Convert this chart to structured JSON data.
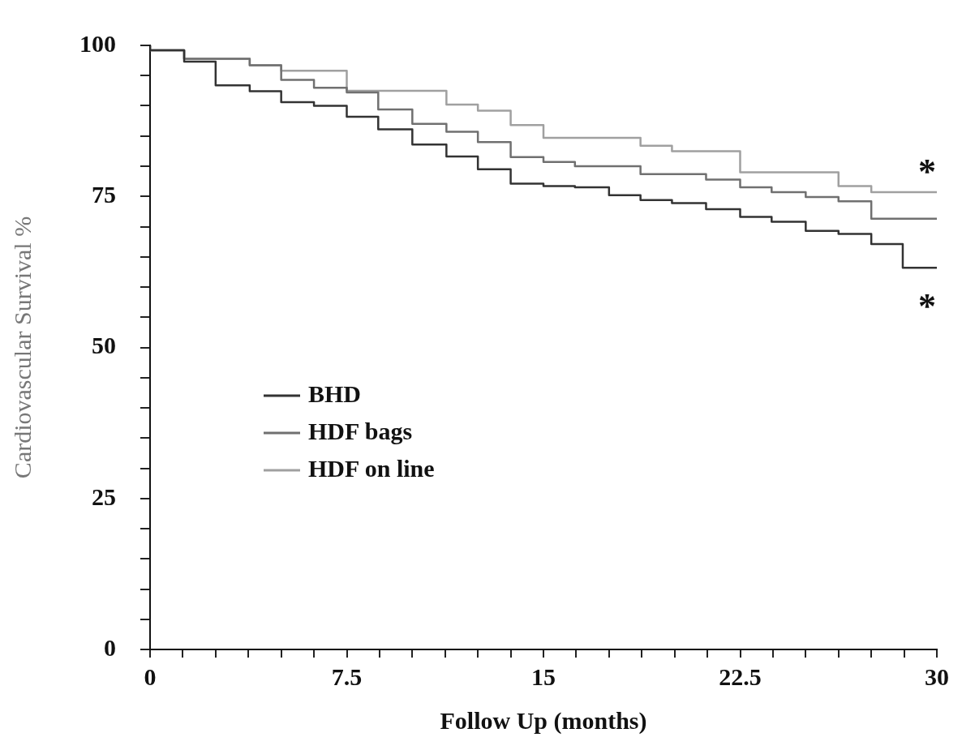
{
  "chart_data": {
    "type": "step",
    "xlabel": "Follow Up (months)",
    "ylabel": "Cardiovascular Survival %",
    "xlim": [
      0,
      30
    ],
    "ylim": [
      0,
      100
    ],
    "xticks": [
      0,
      {
        "value": 1.25,
        "label": null
      },
      {
        "value": 2.5,
        "label": null
      },
      {
        "value": 3.75,
        "label": null
      },
      {
        "value": 5,
        "label": null
      },
      {
        "value": 6.25,
        "label": null
      },
      7.5,
      {
        "value": 8.75,
        "label": null
      },
      {
        "value": 10,
        "label": null
      },
      {
        "value": 11.25,
        "label": null
      },
      {
        "value": 12.5,
        "label": null
      },
      {
        "value": 13.75,
        "label": null
      },
      15,
      {
        "value": 16.25,
        "label": null
      },
      {
        "value": 17.5,
        "label": null
      },
      {
        "value": 18.75,
        "label": null
      },
      {
        "value": 20,
        "label": null
      },
      {
        "value": 21.25,
        "label": null
      },
      22.5,
      {
        "value": 23.75,
        "label": null
      },
      {
        "value": 25,
        "label": null
      },
      {
        "value": 26.25,
        "label": null
      },
      {
        "value": 27.5,
        "label": null
      },
      {
        "value": 28.75,
        "label": null
      },
      30
    ],
    "yticks": [
      0,
      {
        "value": 5,
        "label": null
      },
      {
        "value": 10,
        "label": null
      },
      {
        "value": 15,
        "label": null
      },
      {
        "value": 20,
        "label": null
      },
      25,
      {
        "value": 30,
        "label": null
      },
      {
        "value": 35,
        "label": null
      },
      {
        "value": 40,
        "label": null
      },
      {
        "value": 45,
        "label": null
      },
      50,
      {
        "value": 55,
        "label": null
      },
      {
        "value": 60,
        "label": null
      },
      {
        "value": 65,
        "label": null
      },
      {
        "value": 70,
        "label": null
      },
      75,
      {
        "value": 80,
        "label": null
      },
      {
        "value": 85,
        "label": null
      },
      {
        "value": 90,
        "label": null
      },
      {
        "value": 95,
        "label": null
      },
      100
    ],
    "grid": false,
    "legend": "left",
    "series": [
      {
        "name": "BHD",
        "color": "#333333",
        "x": [
          0,
          1.3,
          2.5,
          3.8,
          5,
          6.25,
          7.5,
          8.7,
          10,
          11.3,
          12.5,
          13.75,
          15,
          16.2,
          17.5,
          18.7,
          19.9,
          21.2,
          22.5,
          23.7,
          25,
          26.25,
          27.5,
          28.7,
          30
        ],
        "values": [
          100,
          99.2,
          97.3,
          93.4,
          92.4,
          90.6,
          90,
          88.2,
          86.1,
          83.6,
          81.6,
          79.5,
          77.1,
          76.7,
          76.5,
          75.2,
          74.4,
          73.9,
          72.9,
          71.6,
          70.8,
          69.3,
          68.8,
          67.1,
          63.2
        ]
      },
      {
        "name": "HDF bags",
        "color": "#707070",
        "x": [
          0,
          1.3,
          3.8,
          5,
          6.25,
          7.5,
          8.7,
          10,
          11.3,
          12.5,
          13.75,
          15,
          16.2,
          18.7,
          21.2,
          22.5,
          23.7,
          25,
          26.25,
          27.5,
          30
        ],
        "values": [
          100,
          99.2,
          97.8,
          96.7,
          94.3,
          93,
          92.2,
          89.4,
          87,
          85.7,
          84,
          81.5,
          80.7,
          80,
          78.7,
          77.8,
          76.5,
          75.7,
          74.9,
          74.2,
          71.3
        ]
      },
      {
        "name": "HDF on line",
        "color": "#a0a0a0",
        "x": [
          0,
          1.3,
          3.8,
          5,
          7.5,
          11.3,
          12.5,
          13.75,
          15,
          18.7,
          19.9,
          22.5,
          26.25,
          27.5,
          28.7,
          30
        ],
        "values": [
          100,
          99.2,
          97.8,
          96.7,
          95.8,
          92.5,
          90.2,
          89.2,
          86.8,
          84.7,
          83.4,
          82.5,
          79,
          76.7,
          75.7,
          75.7
        ]
      }
    ],
    "annotations": [
      "*",
      "*"
    ]
  }
}
